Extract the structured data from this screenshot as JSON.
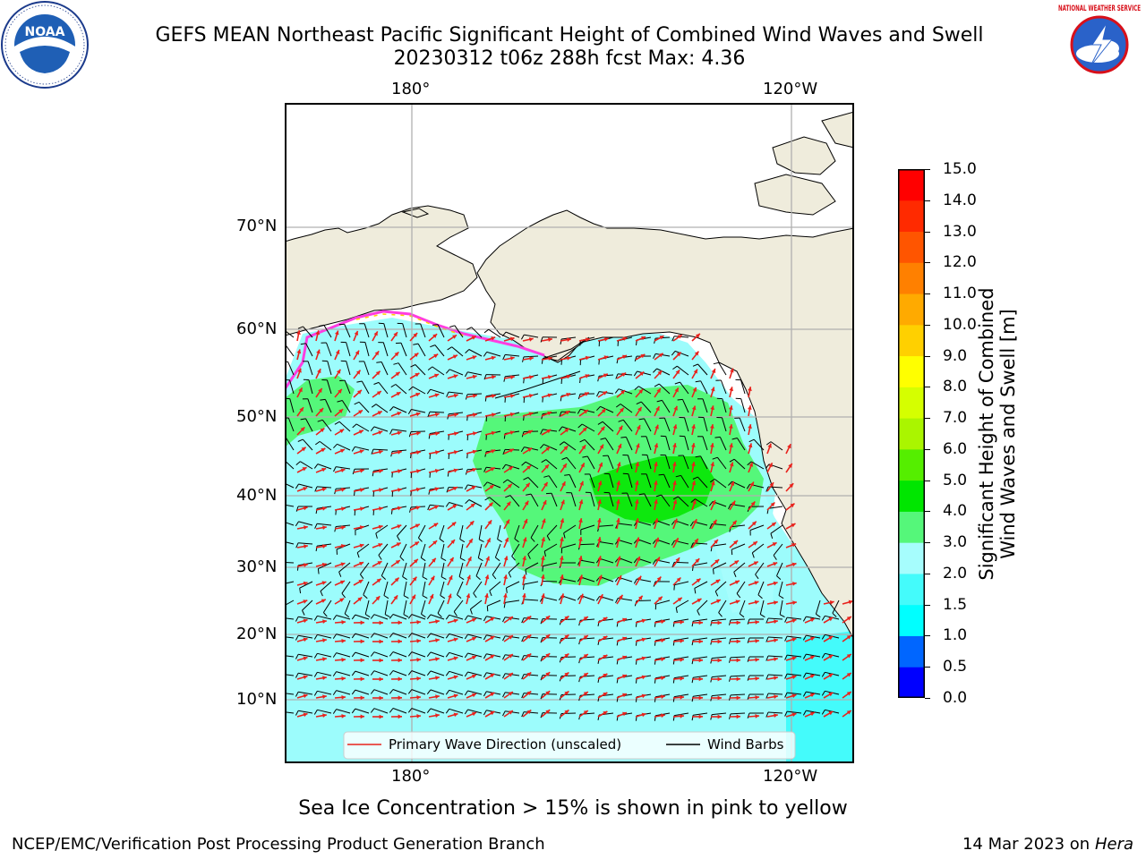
{
  "title": {
    "line1": "GEFS MEAN Northeast Pacific Significant Height of Combined Wind Waves and Swell",
    "line2": "20230312 t06z 288h fcst   Max: 4.36"
  },
  "map": {
    "lon_labels": [
      "180°",
      "120°W"
    ],
    "lat_labels": [
      "70°N",
      "60°N",
      "50°N",
      "40°N",
      "30°N",
      "20°N",
      "10°N"
    ],
    "legend": {
      "primary_wave_label": "Primary Wave Direction (unscaled)",
      "wind_barbs_label": "Wind Barbs",
      "primary_wave_color": "#e8221c",
      "wind_barb_color": "#000000"
    },
    "colors": {
      "land": "#efecdc",
      "ocean_low": "#9cfcfc",
      "green_mid": "#55f77a",
      "green_high": "#0ee80e",
      "grid": "#b0b0b0",
      "sea_ice": "#ff3de0"
    }
  },
  "colorbar": {
    "title_line1": "Significant Height of Combined",
    "title_line2": "Wind Waves and Swell [m]",
    "ticks": [
      "0.0",
      "0.5",
      "1.0",
      "1.5",
      "2.0",
      "3.0",
      "4.0",
      "5.0",
      "6.0",
      "7.0",
      "8.0",
      "9.0",
      "10.0",
      "11.0",
      "12.0",
      "13.0",
      "14.0",
      "15.0"
    ],
    "bins": [
      "#0000ff",
      "#0066ff",
      "#00ffff",
      "#44fbfb",
      "#a6fdfd",
      "#55f77a",
      "#00e600",
      "#55ee00",
      "#aaf500",
      "#d5ff00",
      "#ffff00",
      "#ffd000",
      "#ffaa00",
      "#ff8000",
      "#ff5500",
      "#ff2a00",
      "#ff0000"
    ]
  },
  "note": "Sea Ice Concentration > 15% is shown in pink to yellow",
  "footer": {
    "credit": "NCEP/EMC/Verification Post Processing Product Generation Branch",
    "date_prefix": "14 Mar 2023 on",
    "machine": "Hera"
  },
  "logos": {
    "noaa_text": "NOAA",
    "nws_text": "NATIONAL WEATHER SERVICE"
  }
}
